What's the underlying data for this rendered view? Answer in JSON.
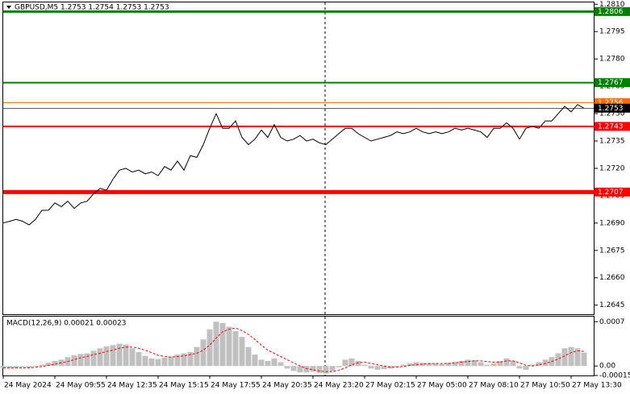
{
  "chart_data": [
    {
      "type": "line",
      "title": "GBPUSD,M5  1.2753 1.2754 1.2753 1.2753",
      "categories": [
        "24 May 2024",
        null,
        null,
        null,
        null,
        null,
        null,
        null,
        "24 May 09:55",
        null,
        null,
        null,
        null,
        null,
        null,
        null,
        "24 May 12:35",
        null,
        null,
        null,
        null,
        null,
        null,
        null,
        "24 May 15:15",
        null,
        null,
        null,
        null,
        null,
        null,
        null,
        "24 May 17:55",
        null,
        null,
        null,
        null,
        null,
        null,
        null,
        "24 May 20:35",
        null,
        null,
        null,
        null,
        null,
        null,
        null,
        "24 May 23:20",
        null,
        null,
        null,
        null,
        null,
        null,
        null,
        "27 May 02:15",
        null,
        null,
        null,
        null,
        null,
        null,
        null,
        "27 May 05:00",
        null,
        null,
        null,
        null,
        null,
        null,
        null,
        "27 May 08:10",
        null,
        null,
        null,
        null,
        null,
        null,
        null,
        "27 May 10:50",
        null,
        null,
        null,
        null,
        null,
        null,
        null,
        "27 May 13:30",
        null,
        null
      ],
      "values": [
        1.269,
        1.2691,
        1.2692,
        1.2691,
        1.2689,
        1.2692,
        1.2697,
        1.2697,
        1.2701,
        1.2699,
        1.2702,
        1.2698,
        1.2701,
        1.2702,
        1.2706,
        1.2709,
        1.2708,
        1.2714,
        1.2719,
        1.272,
        1.2718,
        1.2719,
        1.2717,
        1.2718,
        1.2716,
        1.2721,
        1.2719,
        1.2724,
        1.2719,
        1.2727,
        1.2726,
        1.2733,
        1.2742,
        1.275,
        1.2742,
        1.2742,
        1.2746,
        1.2737,
        1.2733,
        1.2736,
        1.2741,
        1.2737,
        1.2744,
        1.2737,
        1.2735,
        1.2736,
        1.2738,
        1.2735,
        1.2736,
        1.2734,
        1.2733,
        1.2736,
        1.2739,
        1.2742,
        1.2742,
        1.2739,
        1.2737,
        1.2735,
        1.2736,
        1.2737,
        1.2738,
        1.274,
        1.2739,
        1.274,
        1.2742,
        1.274,
        1.2739,
        1.274,
        1.2739,
        1.274,
        1.2742,
        1.2741,
        1.2742,
        1.2741,
        1.274,
        1.2737,
        1.2742,
        1.2742,
        1.2745,
        1.2742,
        1.2736,
        1.2742,
        1.2743,
        1.2742,
        1.2746,
        1.2746,
        1.275,
        1.2754,
        1.2751,
        1.2755,
        1.2753
      ],
      "color": "#000000",
      "ylim": [
        1.264,
        1.2811
      ],
      "yticks": [
        {
          "value": 1.281,
          "label": "1.2810"
        },
        1.2795,
        {
          "value": 1.278,
          "label": "1.2780"
        },
        1.2765,
        {
          "value": 1.275,
          "label": "1.2750"
        },
        1.2735,
        {
          "value": 1.272,
          "label": "1.2720"
        },
        1.2705,
        {
          "value": 1.269,
          "label": "1.2690"
        },
        1.2675,
        {
          "value": 1.266,
          "label": "1.2660"
        },
        1.2645
      ],
      "levels": [
        {
          "value": 1.2806,
          "color": "#008000"
        },
        {
          "value": 1.2767,
          "color": "#008000"
        },
        {
          "value": 1.2756,
          "color": "#ff6a00"
        },
        {
          "value": 1.2753,
          "color": "#000000"
        },
        {
          "value": 1.2743,
          "color": "#ff0000"
        },
        {
          "value": 1.2707,
          "color": "#ff0000"
        }
      ]
    },
    {
      "type": "macd",
      "title": "MACD(12,26,9) 0.00021 0.00023",
      "histogram": {
        "color": "#c0c0c0",
        "values": [
          -3e-05,
          -4e-05,
          -3e-05,
          -2e-05,
          -3e-05,
          -1e-05,
          2e-05,
          5e-05,
          8e-05,
          0.0001,
          0.00014,
          0.00017,
          0.00019,
          0.0002,
          0.00024,
          0.00028,
          0.00031,
          0.00033,
          0.00035,
          0.00034,
          0.00028,
          0.00022,
          0.00016,
          0.00012,
          0.00011,
          0.00013,
          0.00014,
          0.00018,
          0.0002,
          0.00022,
          0.0003,
          0.00042,
          0.00058,
          0.0007,
          0.00068,
          0.00062,
          0.00055,
          0.00046,
          0.0003,
          0.00018,
          0.0001,
          8e-05,
          0.00012,
          6e-05,
          -4e-05,
          -8e-05,
          -0.0001,
          -0.0001,
          -9e-05,
          -0.00011,
          -0.00012,
          -8e-05,
          -2e-05,
          0.0001,
          0.00012,
          8e-05,
          2e-05,
          -4e-05,
          -6e-05,
          -5e-05,
          -4e-05,
          -2e-05,
          2e-05,
          4e-05,
          6e-05,
          5e-05,
          4e-05,
          4e-05,
          3e-05,
          5e-05,
          6e-05,
          8e-05,
          0.0001,
          9e-05,
          6e-05,
          2e-05,
          4e-05,
          8e-05,
          0.00012,
          8e-05,
          -4e-05,
          -6e-05,
          2e-05,
          6e-05,
          0.0001,
          0.00014,
          0.0002,
          0.00028,
          0.0003,
          0.00028,
          0.00021
        ]
      },
      "signal": {
        "color": "#ff0000",
        "values": [
          -3e-05,
          -3e-05,
          -3e-05,
          -3e-05,
          -3e-05,
          -2e-05,
          -1e-05,
          1e-05,
          3e-05,
          5e-05,
          7e-05,
          0.0001,
          0.00013,
          0.00015,
          0.00018,
          0.0002,
          0.00023,
          0.00025,
          0.00028,
          0.0003,
          0.0003,
          0.00028,
          0.00025,
          0.00021,
          0.00017,
          0.00015,
          0.00014,
          0.00015,
          0.00016,
          0.00018,
          0.0002,
          0.00025,
          0.00033,
          0.00044,
          0.00054,
          0.00058,
          0.0006,
          0.00056,
          0.0005,
          0.00042,
          0.00033,
          0.00025,
          0.0002,
          0.00015,
          0.0001,
          5e-05,
          0,
          -4e-05,
          -6e-05,
          -8e-05,
          -9e-05,
          -9e-05,
          -7e-05,
          -3e-05,
          2e-05,
          5e-05,
          6e-05,
          4e-05,
          2e-05,
          0,
          -2e-05,
          -2e-05,
          -1e-05,
          1e-05,
          2e-05,
          3e-05,
          4e-05,
          4e-05,
          4e-05,
          4e-05,
          5e-05,
          6e-05,
          7e-05,
          8e-05,
          8e-05,
          7e-05,
          6e-05,
          6e-05,
          8e-05,
          8e-05,
          5e-05,
          1e-05,
          0,
          2e-05,
          4e-05,
          7e-05,
          0.00011,
          0.00016,
          0.00021,
          0.00024,
          0.00023
        ]
      },
      "ylim": [
        -0.00015,
        0.00078
      ],
      "yticks": [
        0.0007,
        {
          "value": 0,
          "label": "0.00"
        },
        -0.00015
      ]
    }
  ]
}
